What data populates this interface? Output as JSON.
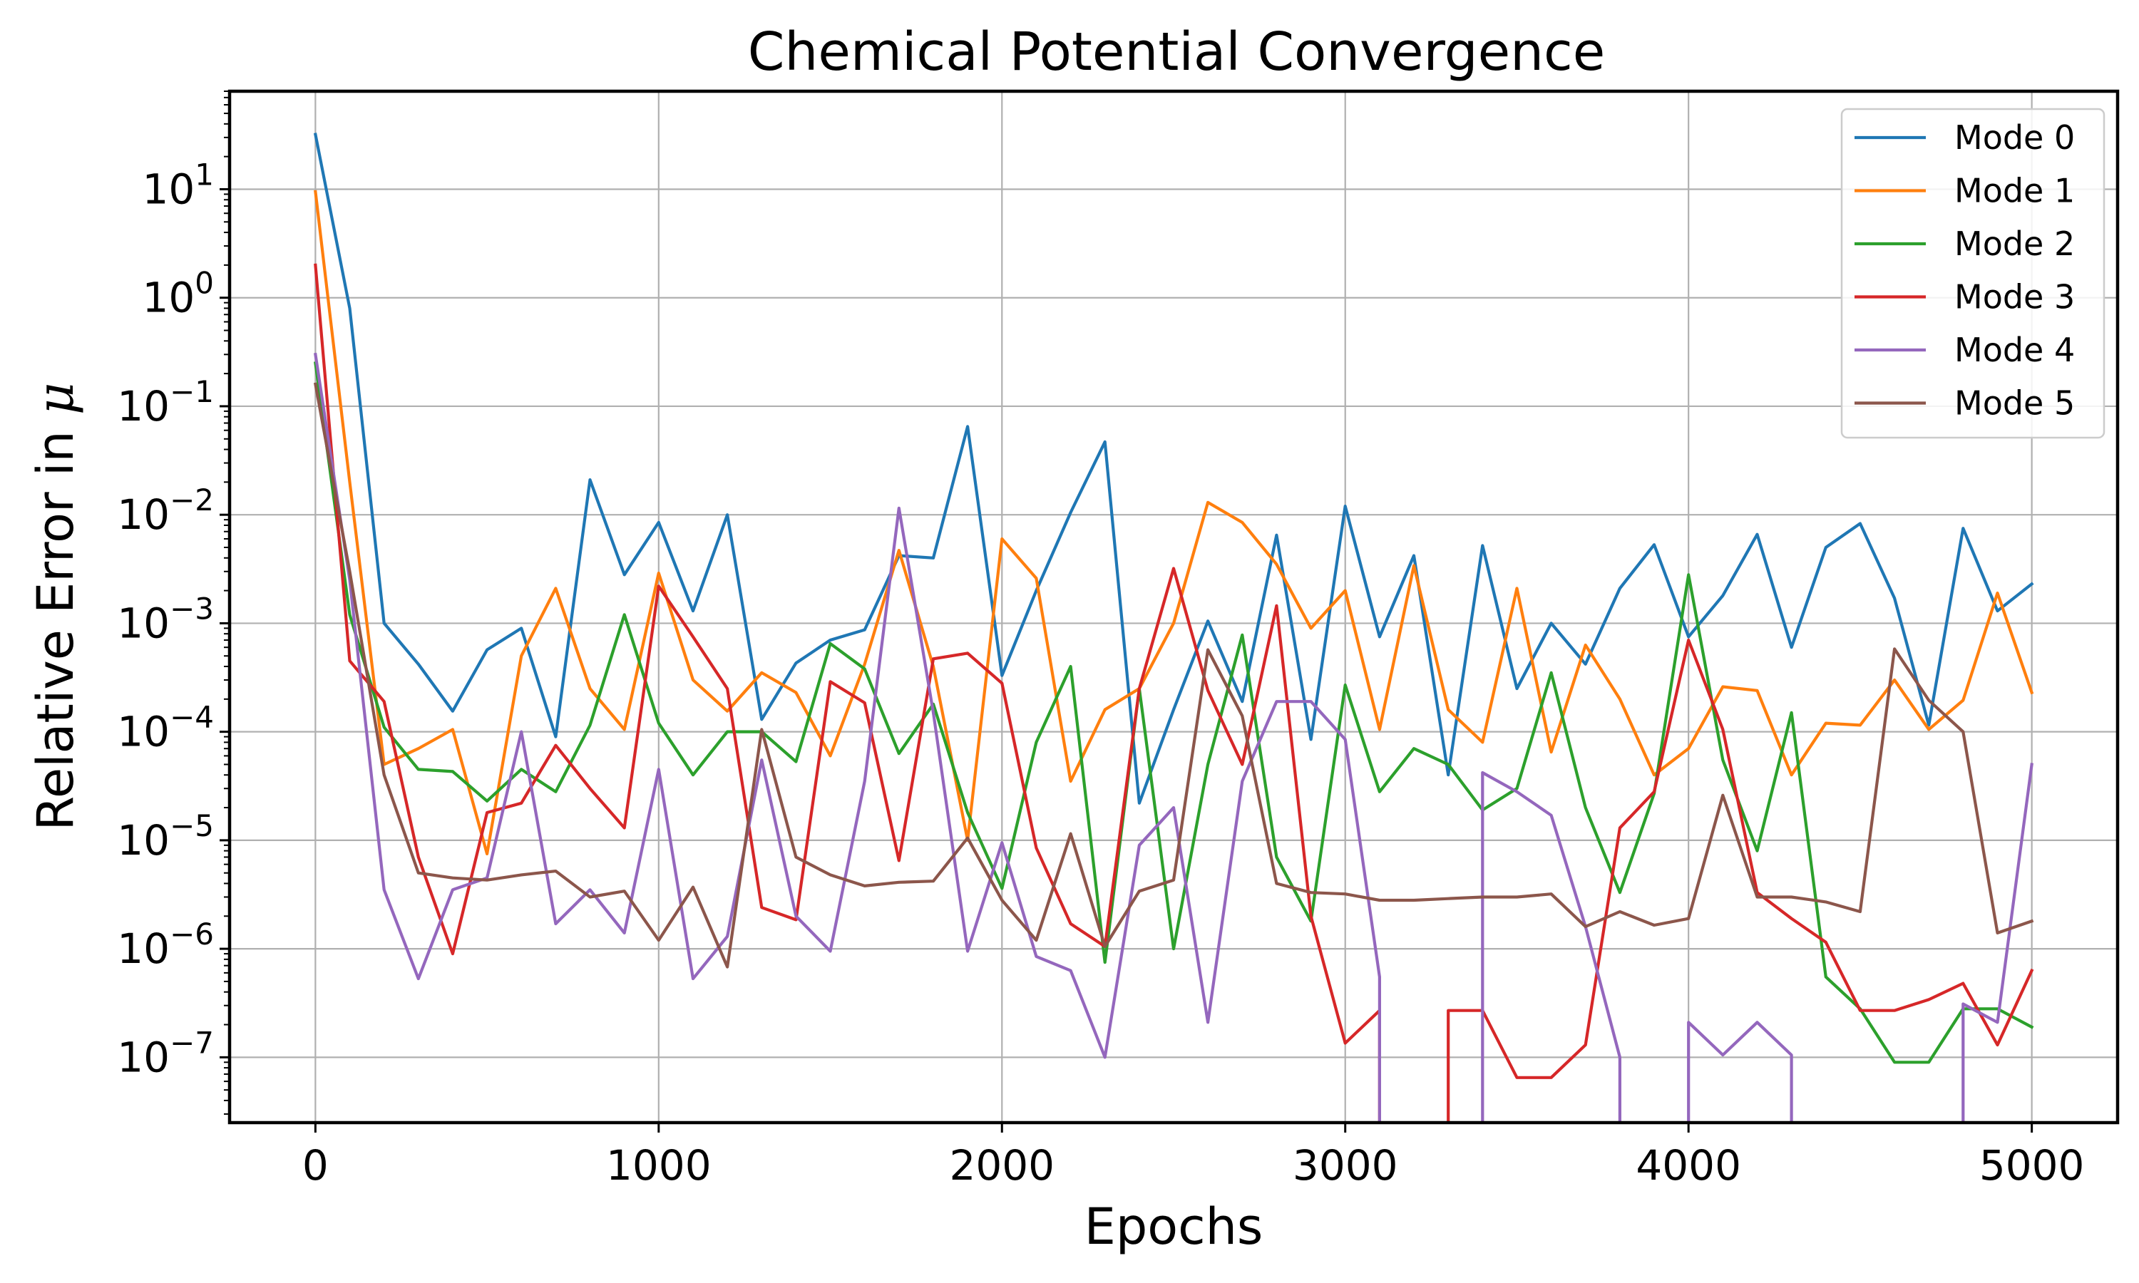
{
  "chart_data": {
    "type": "line",
    "title": "Chemical Potential Convergence",
    "xlabel": "Epochs",
    "ylabel_prefix": "Relative Error in ",
    "ylabel_symbol": "μ",
    "xscale": "linear",
    "yscale": "log",
    "xlim": [
      -250,
      5250
    ],
    "ylim": [
      2.5e-08,
      80
    ],
    "grid": true,
    "legend_position": "top-right",
    "x_ticks": [
      {
        "value": 0,
        "label": "0"
      },
      {
        "value": 1000,
        "label": "1000"
      },
      {
        "value": 2000,
        "label": "2000"
      },
      {
        "value": 3000,
        "label": "3000"
      },
      {
        "value": 4000,
        "label": "4000"
      },
      {
        "value": 5000,
        "label": "5000"
      }
    ],
    "y_ticks": [
      {
        "value": 1e-07,
        "base": "10",
        "exp": "−7"
      },
      {
        "value": 1e-06,
        "base": "10",
        "exp": "−6"
      },
      {
        "value": 1e-05,
        "base": "10",
        "exp": "−5"
      },
      {
        "value": 0.0001,
        "base": "10",
        "exp": "−4"
      },
      {
        "value": 0.001,
        "base": "10",
        "exp": "−3"
      },
      {
        "value": 0.01,
        "base": "10",
        "exp": "−2"
      },
      {
        "value": 0.1,
        "base": "10",
        "exp": "−1"
      },
      {
        "value": 1,
        "base": "10",
        "exp": "0"
      },
      {
        "value": 10,
        "base": "10",
        "exp": "1"
      }
    ],
    "x": [
      0,
      100,
      200,
      300,
      400,
      500,
      600,
      700,
      800,
      900,
      1000,
      1100,
      1200,
      1300,
      1400,
      1500,
      1600,
      1700,
      1800,
      1900,
      2000,
      2100,
      2200,
      2300,
      2400,
      2500,
      2600,
      2700,
      2800,
      2900,
      3000,
      3100,
      3200,
      3300,
      3400,
      3500,
      3600,
      3700,
      3800,
      3900,
      4000,
      4100,
      4200,
      4300,
      4400,
      4500,
      4600,
      4700,
      4800,
      4900,
      5000
    ],
    "series": [
      {
        "name": "Mode 0",
        "color": "#1f77b4",
        "values": [
          32,
          0.8,
          0.001,
          0.00042,
          0.000155,
          0.00057,
          0.0009,
          9e-05,
          0.021,
          0.0028,
          0.0085,
          0.0013,
          0.01,
          0.00013,
          0.00043,
          0.0007,
          0.00087,
          0.0042,
          0.004,
          0.065,
          0.00033,
          0.002,
          0.0105,
          0.047,
          2.2e-05,
          0.00016,
          0.00105,
          0.00019,
          0.0065,
          8.5e-05,
          0.012,
          0.00075,
          0.0042,
          4e-05,
          0.0052,
          0.00025,
          0.001,
          0.00042,
          0.0021,
          0.0053,
          0.00075,
          0.0018,
          0.0066,
          0.0006,
          0.005,
          0.0083,
          0.0017,
          0.000115,
          0.0075,
          0.0013,
          0.0023
        ]
      },
      {
        "name": "Mode 1",
        "color": "#ff7f0e",
        "values": [
          9.5,
          0.02,
          5e-05,
          7e-05,
          0.000105,
          7.5e-06,
          0.0005,
          0.0021,
          0.00025,
          0.000105,
          0.0029,
          0.0003,
          0.000155,
          0.00035,
          0.00023,
          6e-05,
          0.00042,
          0.0047,
          0.0004,
          1e-05,
          0.006,
          0.0026,
          3.5e-05,
          0.00016,
          0.00025,
          0.001,
          0.013,
          0.0085,
          0.0035,
          0.0009,
          0.002,
          0.000105,
          0.0034,
          0.00016,
          8e-05,
          0.0021,
          6.5e-05,
          0.00063,
          0.0002,
          4e-05,
          7e-05,
          0.00026,
          0.00024,
          4e-05,
          0.00012,
          0.000115,
          0.0003,
          0.000105,
          0.000195,
          0.0019,
          0.00023
        ]
      },
      {
        "name": "Mode 2",
        "color": "#2ca02c",
        "values": [
          0.25,
          0.0012,
          0.00011,
          4.5e-05,
          4.3e-05,
          2.3e-05,
          4.5e-05,
          2.8e-05,
          0.000115,
          0.0012,
          0.00012,
          4e-05,
          0.0001,
          0.0001,
          5.3e-05,
          0.00065,
          0.00038,
          6.3e-05,
          0.00018,
          1.8e-05,
          3.6e-06,
          8e-05,
          0.0004,
          7.5e-07,
          0.00025,
          1e-06,
          5e-05,
          0.00078,
          7e-06,
          1.8e-06,
          0.00027,
          2.8e-05,
          7e-05,
          5e-05,
          1.9e-05,
          3e-05,
          0.00035,
          2e-05,
          3.3e-06,
          2.7e-05,
          0.0028,
          5.5e-05,
          8e-06,
          0.00015,
          5.5e-07,
          2.8e-07,
          9e-08,
          9e-08,
          2.8e-07,
          2.8e-07,
          1.9e-07
        ]
      },
      {
        "name": "Mode 3",
        "color": "#d62728",
        "values": [
          2.0,
          0.00045,
          0.00019,
          7e-06,
          9e-07,
          1.8e-05,
          2.2e-05,
          7.5e-05,
          3e-05,
          1.3e-05,
          0.0022,
          0.00075,
          0.00025,
          2.4e-06,
          1.85e-06,
          0.00029,
          0.000185,
          6.5e-06,
          0.00047,
          0.00053,
          0.00028,
          8.5e-06,
          1.7e-06,
          1.05e-06,
          0.00025,
          0.0032,
          0.00024,
          5e-05,
          0.00145,
          2e-06,
          1.35e-07,
          2.7e-07,
          null,
          2.7e-07,
          2.7e-07,
          6.5e-08,
          6.5e-08,
          1.3e-07,
          1.3e-05,
          2.8e-05,
          0.0007,
          0.000105,
          3.3e-06,
          1.9e-06,
          1.15e-06,
          2.7e-07,
          2.7e-07,
          3.4e-07,
          4.8e-07,
          1.3e-07,
          6.3e-07
        ]
      },
      {
        "name": "Mode 4",
        "color": "#9467bd",
        "values": [
          0.3,
          0.0025,
          3.5e-06,
          5.3e-07,
          3.5e-06,
          4.5e-06,
          0.0001,
          1.7e-06,
          3.5e-06,
          1.4e-06,
          4.5e-05,
          5.3e-07,
          1.3e-06,
          5.5e-05,
          2e-06,
          9.5e-07,
          3.5e-05,
          0.0115,
          0.00015,
          9.5e-07,
          9.5e-06,
          8.5e-07,
          6.3e-07,
          1e-07,
          9e-06,
          2e-05,
          2.1e-07,
          3.5e-05,
          0.00019,
          0.00019,
          8.5e-05,
          5.5e-07,
          null,
          null,
          4.2e-05,
          2.8e-05,
          1.7e-05,
          1.6e-06,
          1e-07,
          null,
          2.1e-07,
          1.05e-07,
          2.1e-07,
          1.05e-07,
          null,
          null,
          null,
          null,
          3.1e-07,
          2.1e-07,
          5e-05
        ]
      },
      {
        "name": "Mode 5",
        "color": "#8c564b",
        "values": [
          0.16,
          0.003,
          4e-05,
          5e-06,
          4.5e-06,
          4.3e-06,
          4.8e-06,
          5.2e-06,
          3e-06,
          3.4e-06,
          1.2e-06,
          3.7e-06,
          6.8e-07,
          0.000105,
          7e-06,
          4.8e-06,
          3.8e-06,
          4.1e-06,
          4.2e-06,
          1.05e-05,
          2.8e-06,
          1.2e-06,
          1.15e-05,
          1.05e-06,
          3.4e-06,
          4.3e-06,
          0.00057,
          0.00014,
          4e-06,
          3.3e-06,
          3.2e-06,
          2.8e-06,
          2.8e-06,
          2.9e-06,
          3e-06,
          3e-06,
          3.2e-06,
          1.6e-06,
          2.2e-06,
          1.65e-06,
          1.9e-06,
          2.6e-05,
          3e-06,
          3e-06,
          2.7e-06,
          2.2e-06,
          0.00058,
          0.000195,
          0.0001,
          1.4e-06,
          1.8e-06
        ]
      }
    ]
  }
}
